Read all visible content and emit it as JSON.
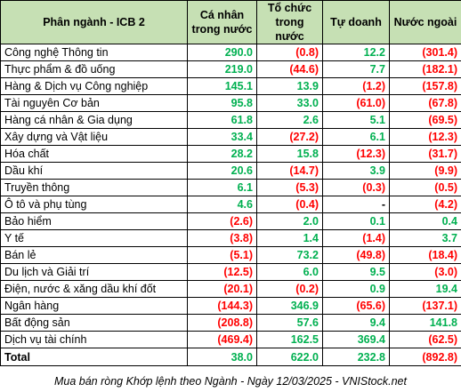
{
  "header": {
    "sector": "Phân ngành - ICB 2",
    "individual": "Cá nhân trong nước",
    "institution": "Tổ chức trong nước",
    "proprietary": "Tự doanh",
    "foreign": "Nước ngoài"
  },
  "rows": [
    {
      "name": "Công nghệ Thông tin",
      "individual": "290.0",
      "institution": "(0.8)",
      "proprietary": "12.2",
      "foreign": "(301.4)"
    },
    {
      "name": "Thực phẩm & đồ uống",
      "individual": "219.0",
      "institution": "(44.6)",
      "proprietary": "7.7",
      "foreign": "(182.1)"
    },
    {
      "name": "Hàng & Dịch vụ Công nghiệp",
      "individual": "145.1",
      "institution": "13.9",
      "proprietary": "(1.2)",
      "foreign": "(157.8)"
    },
    {
      "name": "Tài nguyên Cơ bản",
      "individual": "95.8",
      "institution": "33.0",
      "proprietary": "(61.0)",
      "foreign": "(67.8)"
    },
    {
      "name": "Hàng cá nhân & Gia dụng",
      "individual": "61.8",
      "institution": "2.6",
      "proprietary": "5.1",
      "foreign": "(69.5)"
    },
    {
      "name": "Xây dựng và Vật liệu",
      "individual": "33.4",
      "institution": "(27.2)",
      "proprietary": "6.1",
      "foreign": "(12.3)"
    },
    {
      "name": "Hóa chất",
      "individual": "28.2",
      "institution": "15.8",
      "proprietary": "(12.3)",
      "foreign": "(31.7)"
    },
    {
      "name": "Dầu khí",
      "individual": "20.6",
      "institution": "(14.7)",
      "proprietary": "3.9",
      "foreign": "(9.9)"
    },
    {
      "name": "Truyền thông",
      "individual": "6.1",
      "institution": "(5.3)",
      "proprietary": "(0.3)",
      "foreign": "(0.5)"
    },
    {
      "name": "Ô tô và phụ tùng",
      "individual": "4.6",
      "institution": "(0.4)",
      "proprietary": "-",
      "foreign": "(4.2)"
    },
    {
      "name": "Bảo hiểm",
      "individual": "(2.6)",
      "institution": "2.0",
      "proprietary": "0.1",
      "foreign": "0.4"
    },
    {
      "name": "Y tế",
      "individual": "(3.8)",
      "institution": "1.4",
      "proprietary": "(1.4)",
      "foreign": "3.7"
    },
    {
      "name": "Bán lẻ",
      "individual": "(5.1)",
      "institution": "73.2",
      "proprietary": "(49.8)",
      "foreign": "(18.4)"
    },
    {
      "name": "Du lịch và Giải trí",
      "individual": "(12.5)",
      "institution": "6.0",
      "proprietary": "9.5",
      "foreign": "(3.0)"
    },
    {
      "name": "Điện, nước & xăng dầu khí đốt",
      "individual": "(20.1)",
      "institution": "(0.2)",
      "proprietary": "0.9",
      "foreign": "19.4"
    },
    {
      "name": "Ngân hàng",
      "individual": "(144.3)",
      "institution": "346.9",
      "proprietary": "(65.6)",
      "foreign": "(137.1)"
    },
    {
      "name": "Bất động sản",
      "individual": "(208.8)",
      "institution": "57.6",
      "proprietary": "9.4",
      "foreign": "141.8"
    },
    {
      "name": "Dịch vụ tài chính",
      "individual": "(469.4)",
      "institution": "162.5",
      "proprietary": "369.4",
      "foreign": "(62.5)"
    }
  ],
  "total": {
    "name": "Total",
    "individual": "38.0",
    "institution": "622.0",
    "proprietary": "232.8",
    "foreign": "(892.8)"
  },
  "caption": "Mua bán ròng Khớp lệnh theo Ngành - Ngày 12/03/2025 - VNIStock.net",
  "colors": {
    "header_bg": "#c6e0b4",
    "positive": "#00b050",
    "negative": "#ff0000",
    "neutral": "#000000"
  }
}
